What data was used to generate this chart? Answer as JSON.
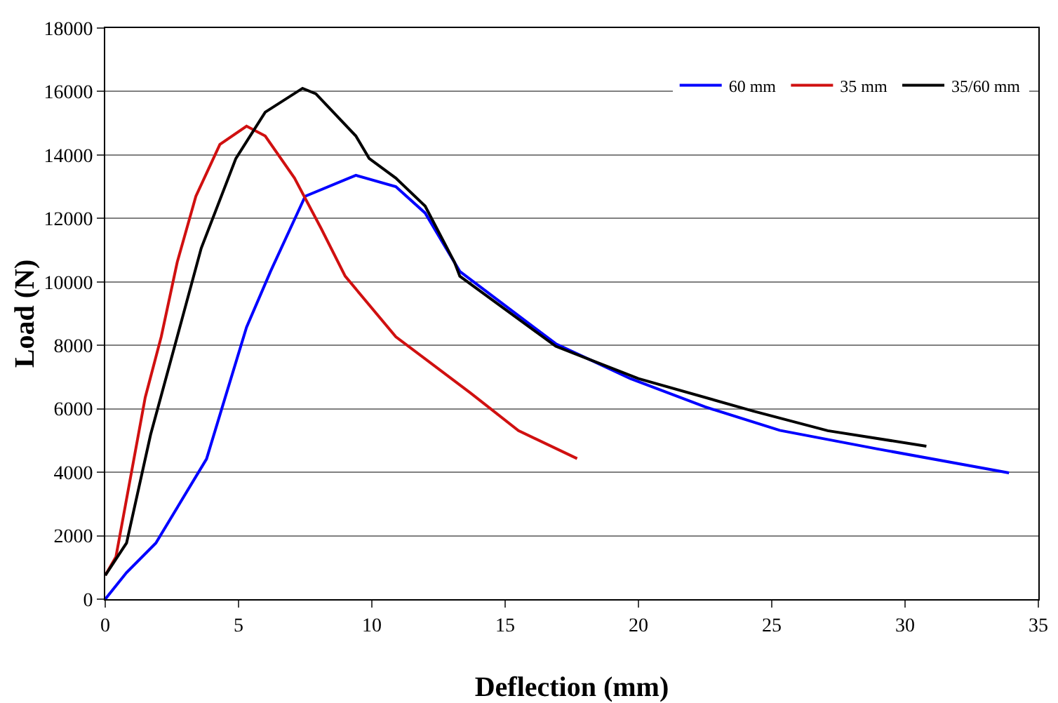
{
  "chart_data": {
    "type": "line",
    "xlabel": "Deflection (mm)",
    "ylabel": "Load (N)",
    "xlim": [
      0,
      35
    ],
    "xticks": [
      0,
      5,
      10,
      15,
      20,
      25,
      30,
      35
    ],
    "ylim": [
      0,
      18000
    ],
    "yticks": [
      0,
      2000,
      4000,
      6000,
      8000,
      10000,
      12000,
      14000,
      16000,
      18000
    ],
    "grid": "y",
    "legend": "top right",
    "marker": "none",
    "line_style": "solid",
    "series": [
      {
        "name": "60 mm",
        "color": "#0000ff",
        "x": [
          0,
          0.8,
          1.9,
          3.8,
          4.5,
          5.3,
          6.2,
          7.5,
          9.4,
          10.9,
          12,
          13.3,
          16.9,
          19.7,
          22.5,
          25.3,
          29,
          33.9
        ],
        "values": [
          0,
          840,
          1770,
          4420,
          6360,
          8570,
          10330,
          12700,
          13360,
          13000,
          12170,
          10330,
          8050,
          6950,
          6060,
          5320,
          4730,
          3980
        ]
      },
      {
        "name": "35 mm",
        "color": "#d01010",
        "x": [
          0,
          0.4,
          1.5,
          2.1,
          2.7,
          3.4,
          4.3,
          5.3,
          6,
          7.1,
          8.1,
          9,
          10.9,
          13.7,
          15.5,
          17.7
        ],
        "values": [
          750,
          1330,
          6360,
          8270,
          10620,
          12700,
          14330,
          14910,
          14600,
          13270,
          11680,
          10180,
          8270,
          6500,
          5310,
          4430
        ]
      },
      {
        "name": "35/60 mm",
        "color": "#000000",
        "x": [
          0,
          0.8,
          1.7,
          2.7,
          3.6,
          4.9,
          6,
          7.4,
          7.9,
          9.4,
          9.9,
          10.9,
          12,
          13.1,
          13.3,
          16.9,
          20,
          24.3,
          27.1,
          30.8
        ],
        "values": [
          750,
          1770,
          5180,
          8270,
          11060,
          13890,
          15350,
          16100,
          15930,
          14600,
          13890,
          13270,
          12390,
          10620,
          10180,
          7970,
          6950,
          5930,
          5310,
          4820
        ]
      }
    ]
  }
}
